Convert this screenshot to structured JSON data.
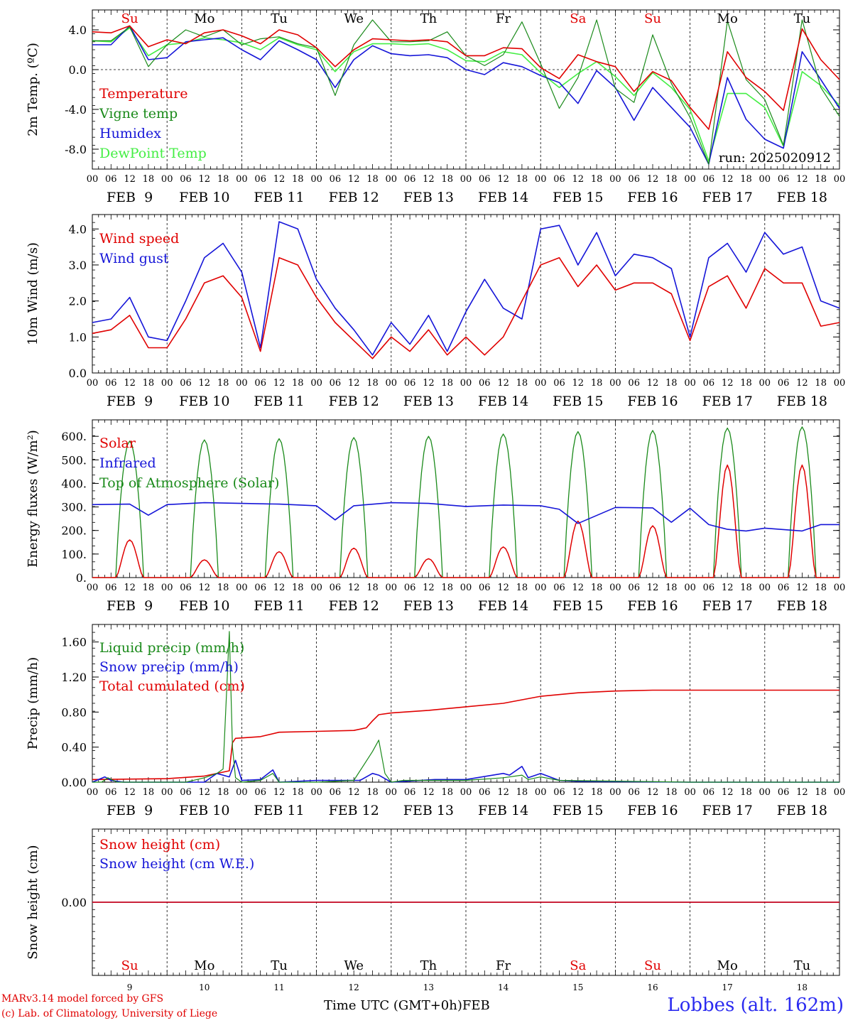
{
  "footer": {
    "model_line": "MARv3.14 model forced by GFS",
    "lab_line": "(c) Lab. of Climatology, University of Liege",
    "time_axis_label": "Time UTC (GMT+0h)",
    "month_label": "FEB",
    "station_label": "Lobbes (alt. 162m)"
  },
  "colors": {
    "red": "#e00000",
    "green": "#1a8a1a",
    "blue": "#1515d8",
    "lightgreen": "#44ee44",
    "weekend": "#e00000",
    "weekday": "#000000"
  },
  "time_axis": {
    "hour_ticks": [
      "00",
      "06",
      "12",
      "18"
    ],
    "dates": [
      "FEB  9",
      "FEB 10",
      "FEB 11",
      "FEB 12",
      "FEB 13",
      "FEB 14",
      "FEB 15",
      "FEB 16",
      "FEB 17",
      "FEB 18"
    ],
    "weekdays": [
      "Su",
      "Mo",
      "Tu",
      "We",
      "Th",
      "Fr",
      "Sa",
      "Su",
      "Mo",
      "Tu"
    ],
    "weekend_flags": [
      true,
      false,
      false,
      false,
      false,
      false,
      true,
      true,
      false,
      false
    ],
    "day_numbers": [
      "9",
      "10",
      "11",
      "12",
      "13",
      "14",
      "15",
      "16",
      "17",
      "18"
    ]
  },
  "chart_data": [
    {
      "type": "line",
      "ylabel": "2m Temp. (ºC)",
      "ylim": [
        -10,
        6
      ],
      "yticks": [
        4,
        0,
        -4,
        -8
      ],
      "yticklabels": [
        "4.0",
        "0.0",
        "-4.0",
        "-8.0"
      ],
      "zero_line": true,
      "annotation": "run: 2025020912",
      "legend_placement": "top-left",
      "x_hours": [
        0,
        6,
        12,
        18,
        24,
        30,
        36,
        42,
        48,
        54,
        60,
        66,
        72,
        78,
        84,
        90,
        96,
        102,
        108,
        114,
        120,
        126,
        132,
        138,
        144,
        150,
        156,
        162,
        168,
        174,
        180,
        186,
        192,
        198,
        204,
        210,
        216,
        222,
        228,
        234,
        240
      ],
      "series": [
        {
          "name": "Temperature",
          "color": "red",
          "values": [
            3.8,
            3.7,
            4.4,
            2.3,
            3.0,
            2.6,
            3.7,
            4.0,
            3.4,
            2.6,
            4.0,
            3.5,
            2.2,
            0.3,
            2.0,
            3.1,
            3.0,
            2.9,
            3.0,
            2.8,
            1.4,
            1.4,
            2.2,
            2.1,
            0.2,
            -0.9,
            1.5,
            0.8,
            0.3,
            -2.2,
            -0.2,
            -1.1,
            -3.8,
            -6.0,
            1.8,
            -0.8,
            -2.2,
            -4.1,
            4.1,
            1.0,
            -1.0
          ]
        },
        {
          "name": "Vigne temp",
          "color": "green",
          "values": [
            2.9,
            2.9,
            4.3,
            0.3,
            2.5,
            4.0,
            3.3,
            4.0,
            2.5,
            3.1,
            3.3,
            2.6,
            2.2,
            -2.6,
            2.5,
            5.0,
            2.8,
            2.8,
            2.9,
            3.8,
            1.4,
            0.4,
            1.5,
            4.8,
            0.6,
            -3.9,
            -0.8,
            5.0,
            -1.9,
            -3.3,
            3.5,
            -1.4,
            -4.8,
            -9.5,
            4.9,
            -1.0,
            -3.0,
            -7.6,
            5.0,
            -1.8,
            -4.7
          ]
        },
        {
          "name": "Humidex",
          "color": "blue",
          "values": [
            2.5,
            2.5,
            4.4,
            1.0,
            1.2,
            2.8,
            3.0,
            3.2,
            2.0,
            1.0,
            2.9,
            2.0,
            1.0,
            -1.8,
            1.0,
            2.4,
            1.6,
            1.4,
            1.5,
            1.2,
            0.0,
            -0.5,
            0.7,
            0.3,
            -0.6,
            -1.3,
            -3.4,
            -0.1,
            -1.8,
            -5.1,
            -1.8,
            -3.8,
            -5.8,
            -9.5,
            -0.8,
            -5.0,
            -7.0,
            -7.9,
            1.8,
            -1.0,
            -3.9
          ]
        },
        {
          "name": "DewPoint Temp",
          "color": "lightgreen",
          "values": [
            2.9,
            2.8,
            4.2,
            1.4,
            2.5,
            2.7,
            3.2,
            3.0,
            2.7,
            2.0,
            3.2,
            2.5,
            2.0,
            -0.2,
            1.8,
            2.6,
            2.6,
            2.5,
            2.6,
            2.0,
            0.9,
            0.8,
            1.8,
            1.5,
            -0.3,
            -1.8,
            -0.4,
            0.8,
            -0.7,
            -2.6,
            -0.3,
            -1.8,
            -4.0,
            -9.2,
            -2.4,
            -2.4,
            -3.8,
            -7.7,
            -0.2,
            -1.6,
            -3.6
          ]
        }
      ]
    },
    {
      "type": "line",
      "ylabel": "10m Wind (m/s)",
      "ylim": [
        0,
        4.4
      ],
      "yticks": [
        4,
        3,
        2,
        1,
        0
      ],
      "yticklabels": [
        "4.0",
        "3.0",
        "2.0",
        "1.0",
        "0.0"
      ],
      "legend_placement": "top-left",
      "x_hours": [
        0,
        6,
        12,
        18,
        24,
        30,
        36,
        42,
        48,
        54,
        60,
        66,
        72,
        78,
        84,
        90,
        96,
        102,
        108,
        114,
        120,
        126,
        132,
        138,
        144,
        150,
        156,
        162,
        168,
        174,
        180,
        186,
        192,
        198,
        204,
        210,
        216,
        222,
        228,
        234,
        240
      ],
      "series": [
        {
          "name": "Wind speed",
          "color": "red",
          "values": [
            1.1,
            1.2,
            1.6,
            0.7,
            0.7,
            1.5,
            2.5,
            2.7,
            2.1,
            0.6,
            3.2,
            3.0,
            2.1,
            1.4,
            0.9,
            0.4,
            1.0,
            0.6,
            1.2,
            0.5,
            1.0,
            0.5,
            1.0,
            2.0,
            3.0,
            3.2,
            2.4,
            3.0,
            2.3,
            2.5,
            2.5,
            2.2,
            0.9,
            2.4,
            2.7,
            1.8,
            2.9,
            2.5,
            2.5,
            1.3,
            1.4
          ]
        },
        {
          "name": "Wind gust",
          "color": "blue",
          "values": [
            1.4,
            1.5,
            2.1,
            1.0,
            0.9,
            2.0,
            3.2,
            3.6,
            2.8,
            0.7,
            4.2,
            4.0,
            2.6,
            1.8,
            1.2,
            0.5,
            1.4,
            0.8,
            1.6,
            0.6,
            1.7,
            2.6,
            1.8,
            1.5,
            4.0,
            4.1,
            3.0,
            3.9,
            2.7,
            3.3,
            3.2,
            2.9,
            1.0,
            3.2,
            3.6,
            2.8,
            3.9,
            3.3,
            3.5,
            2.0,
            1.8
          ]
        }
      ]
    },
    {
      "type": "line",
      "ylabel": "Energy fluxes (W/m²)",
      "ylim": [
        0,
        670
      ],
      "yticks": [
        600,
        500,
        400,
        300,
        200,
        100,
        0
      ],
      "yticklabels": [
        "600.",
        "500.",
        "400.",
        "300.",
        "200.",
        "100.",
        "0."
      ],
      "legend_placement": "top-left",
      "diurnal": {
        "sunrise_hour": 7.5,
        "sunset_hour": 16.5,
        "solar_peak": [
          160,
          75,
          110,
          125,
          80,
          130,
          240,
          220,
          478,
          478
        ],
        "toa_peak": [
          580,
          585,
          590,
          595,
          600,
          610,
          620,
          625,
          635,
          640
        ]
      },
      "infrared_x_hours": [
        0,
        12,
        18,
        24,
        36,
        48,
        60,
        72,
        78,
        84,
        96,
        108,
        120,
        132,
        144,
        150,
        156,
        168,
        180,
        186,
        192,
        198,
        204,
        210,
        216,
        228,
        234,
        240
      ],
      "series": [
        {
          "name": "Solar",
          "color": "red"
        },
        {
          "name": "Infrared",
          "color": "blue",
          "values": [
            310,
            312,
            265,
            310,
            318,
            315,
            312,
            305,
            245,
            305,
            318,
            315,
            302,
            308,
            305,
            290,
            230,
            298,
            296,
            235,
            295,
            225,
            205,
            198,
            210,
            198,
            225,
            225
          ]
        },
        {
          "name": "Top of Atmosphere (Solar)",
          "color": "green"
        }
      ]
    },
    {
      "type": "line",
      "ylabel": "Precip (mm/h)",
      "ylim": [
        0,
        1.8
      ],
      "yticks": [
        1.6,
        1.2,
        0.8,
        0.4,
        0.0
      ],
      "yticklabels": [
        "1.60",
        "1.20",
        "0.80",
        "0.40",
        "0.00"
      ],
      "legend_placement": "top-left",
      "series": [
        {
          "name": "Liquid precip (mm/h)",
          "color": "green",
          "x_hours": [
            0,
            3,
            5,
            8,
            30,
            36,
            40,
            42,
            44,
            45,
            46,
            48,
            54,
            58,
            60,
            72,
            84,
            90,
            92,
            94,
            96,
            100,
            120,
            132,
            138,
            140,
            144,
            150,
            192,
            240
          ],
          "values": [
            0,
            0,
            0.05,
            0,
            0,
            0.05,
            0.1,
            0.15,
            1.72,
            0.4,
            0.05,
            0,
            0.02,
            0.1,
            0,
            0,
            0.02,
            0.35,
            0.48,
            0.1,
            0,
            0.02,
            0.02,
            0.05,
            0.08,
            0.03,
            0.06,
            0.02,
            0,
            0
          ]
        },
        {
          "name": "Snow precip (mm/h)",
          "color": "blue",
          "x_hours": [
            0,
            4,
            6,
            10,
            36,
            40,
            44,
            46,
            48,
            54,
            58,
            60,
            72,
            86,
            90,
            92,
            94,
            96,
            110,
            120,
            132,
            134,
            138,
            140,
            144,
            150,
            156,
            192,
            240
          ],
          "values": [
            0,
            0.06,
            0.02,
            0,
            0,
            0.1,
            0.06,
            0.25,
            0.02,
            0.03,
            0.14,
            0,
            0.02,
            0.02,
            0.1,
            0.08,
            0.04,
            0,
            0.03,
            0.03,
            0.1,
            0.08,
            0.18,
            0.05,
            0.1,
            0.02,
            0.01,
            0,
            0
          ]
        },
        {
          "name": "Total cumulated (cm)",
          "color": "red",
          "x_hours": [
            0,
            12,
            24,
            36,
            44,
            45,
            46,
            54,
            60,
            72,
            84,
            88,
            90,
            92,
            96,
            108,
            120,
            132,
            144,
            156,
            168,
            180,
            192,
            240
          ],
          "values": [
            0.03,
            0.035,
            0.04,
            0.07,
            0.13,
            0.45,
            0.5,
            0.52,
            0.57,
            0.58,
            0.59,
            0.62,
            0.7,
            0.77,
            0.79,
            0.82,
            0.86,
            0.9,
            0.98,
            1.02,
            1.04,
            1.05,
            1.05,
            1.05
          ]
        }
      ]
    },
    {
      "type": "line",
      "ylabel": "Snow height (cm)",
      "ylim": [
        -1,
        1
      ],
      "yticks": [
        0
      ],
      "yticklabels": [
        "0.00"
      ],
      "legend_placement": "top-left",
      "series": [
        {
          "name": "Snow height (cm)",
          "color": "red",
          "x_hours": [
            0,
            240
          ],
          "values": [
            0,
            0
          ]
        },
        {
          "name": "Snow height (cm W.E.)",
          "color": "blue",
          "x_hours": [
            0,
            240
          ],
          "values": [
            0,
            0
          ]
        }
      ]
    }
  ]
}
